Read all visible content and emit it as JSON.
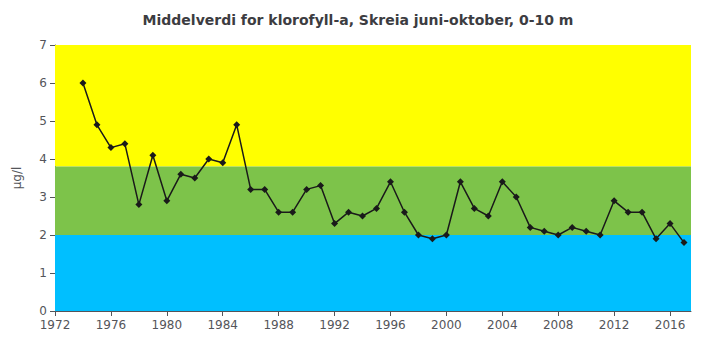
{
  "chart_data": {
    "type": "line",
    "title": "Middelverdi for klorofyll-a, Skreia juni-oktober, 0-10 m",
    "ylabel": "μg/l",
    "x": [
      1974,
      1975,
      1976,
      1977,
      1978,
      1979,
      1980,
      1981,
      1982,
      1983,
      1984,
      1985,
      1986,
      1987,
      1988,
      1989,
      1990,
      1991,
      1992,
      1993,
      1994,
      1995,
      1996,
      1997,
      1998,
      1999,
      2000,
      2001,
      2002,
      2003,
      2004,
      2005,
      2006,
      2007,
      2008,
      2009,
      2010,
      2011,
      2012,
      2013,
      2014,
      2015,
      2016,
      2017
    ],
    "values": [
      6.0,
      4.9,
      4.3,
      4.4,
      2.8,
      4.1,
      2.9,
      3.6,
      3.5,
      4.0,
      3.9,
      4.9,
      3.2,
      3.2,
      2.6,
      2.6,
      3.2,
      3.3,
      2.3,
      2.6,
      2.5,
      2.7,
      3.4,
      2.6,
      2.0,
      1.9,
      2.0,
      3.4,
      2.7,
      2.5,
      3.4,
      3.0,
      2.2,
      2.1,
      2.0,
      2.2,
      2.1,
      2.0,
      2.9,
      2.6,
      2.6,
      1.9,
      2.3,
      1.8
    ],
    "color": "#1a1a1a",
    "marker": "diamond",
    "xlim": [
      1972,
      2017.5
    ],
    "ylim": [
      0,
      7
    ],
    "xticks": [
      1972,
      1976,
      1980,
      1984,
      1988,
      1992,
      1996,
      2000,
      2004,
      2008,
      2012,
      2016
    ],
    "yticks": [
      0,
      1,
      2,
      3,
      4,
      5,
      6,
      7
    ],
    "grid": false,
    "bands": [
      {
        "range": [
          3.8,
          7
        ],
        "color": "#FFFF00"
      },
      {
        "range": [
          2.0,
          3.8
        ],
        "color": "#7DC34A"
      },
      {
        "range": [
          0,
          2.0
        ],
        "color": "#00BFFF"
      }
    ]
  }
}
